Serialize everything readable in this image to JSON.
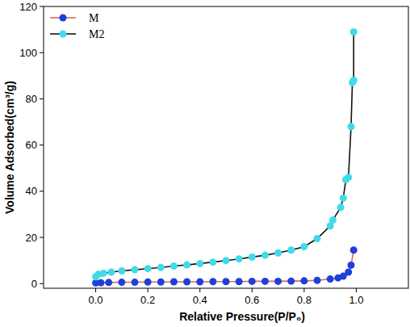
{
  "chart_data": {
    "type": "line",
    "x_label": "Relative Pressure(P/P₀)",
    "y_label": "Volume Adsorbed(cm³/g)",
    "xlim": [
      -0.2,
      1.2
    ],
    "ylim": [
      -2,
      120
    ],
    "xticks": [
      {
        "value": 0,
        "label": "0.0"
      },
      0.2,
      0.4,
      0.6,
      0.8,
      {
        "value": 1,
        "label": "1.0"
      }
    ],
    "yticks": [
      0,
      20,
      40,
      60,
      80,
      100,
      120
    ],
    "legend": "upper left",
    "marker": "circle",
    "line_style": "solid",
    "series": [
      {
        "name": "M",
        "color": "#1f3fd9",
        "x": [
          0.0,
          0.02,
          0.05,
          0.1,
          0.15,
          0.2,
          0.25,
          0.3,
          0.35,
          0.4,
          0.45,
          0.5,
          0.55,
          0.6,
          0.65,
          0.7,
          0.75,
          0.8,
          0.85,
          0.9,
          0.93,
          0.95,
          0.97,
          0.98,
          0.99
        ],
        "values": [
          0.3,
          0.4,
          0.5,
          0.6,
          0.6,
          0.7,
          0.7,
          0.8,
          0.8,
          0.8,
          0.9,
          0.9,
          0.9,
          1.0,
          1.0,
          1.0,
          1.1,
          1.2,
          1.4,
          2.0,
          2.5,
          3.2,
          5.0,
          8.0,
          14.5
        ]
      },
      {
        "name": "M2",
        "color": "#3fdbe8",
        "x": [
          0.0,
          0.01,
          0.03,
          0.06,
          0.1,
          0.15,
          0.2,
          0.25,
          0.3,
          0.35,
          0.4,
          0.45,
          0.5,
          0.55,
          0.6,
          0.65,
          0.7,
          0.75,
          0.8,
          0.85,
          0.9,
          0.91,
          0.94,
          0.95,
          0.96,
          0.97,
          0.98,
          0.985,
          0.99,
          0.99
        ],
        "values": [
          3,
          4,
          4.5,
          5,
          5.5,
          6,
          6.5,
          7,
          7.6,
          8.1,
          8.7,
          9.3,
          10,
          10.7,
          11.5,
          12.3,
          13.3,
          14.5,
          16,
          19.5,
          25,
          27.5,
          33,
          37,
          45,
          46,
          68,
          87,
          88,
          109
        ]
      }
    ]
  }
}
